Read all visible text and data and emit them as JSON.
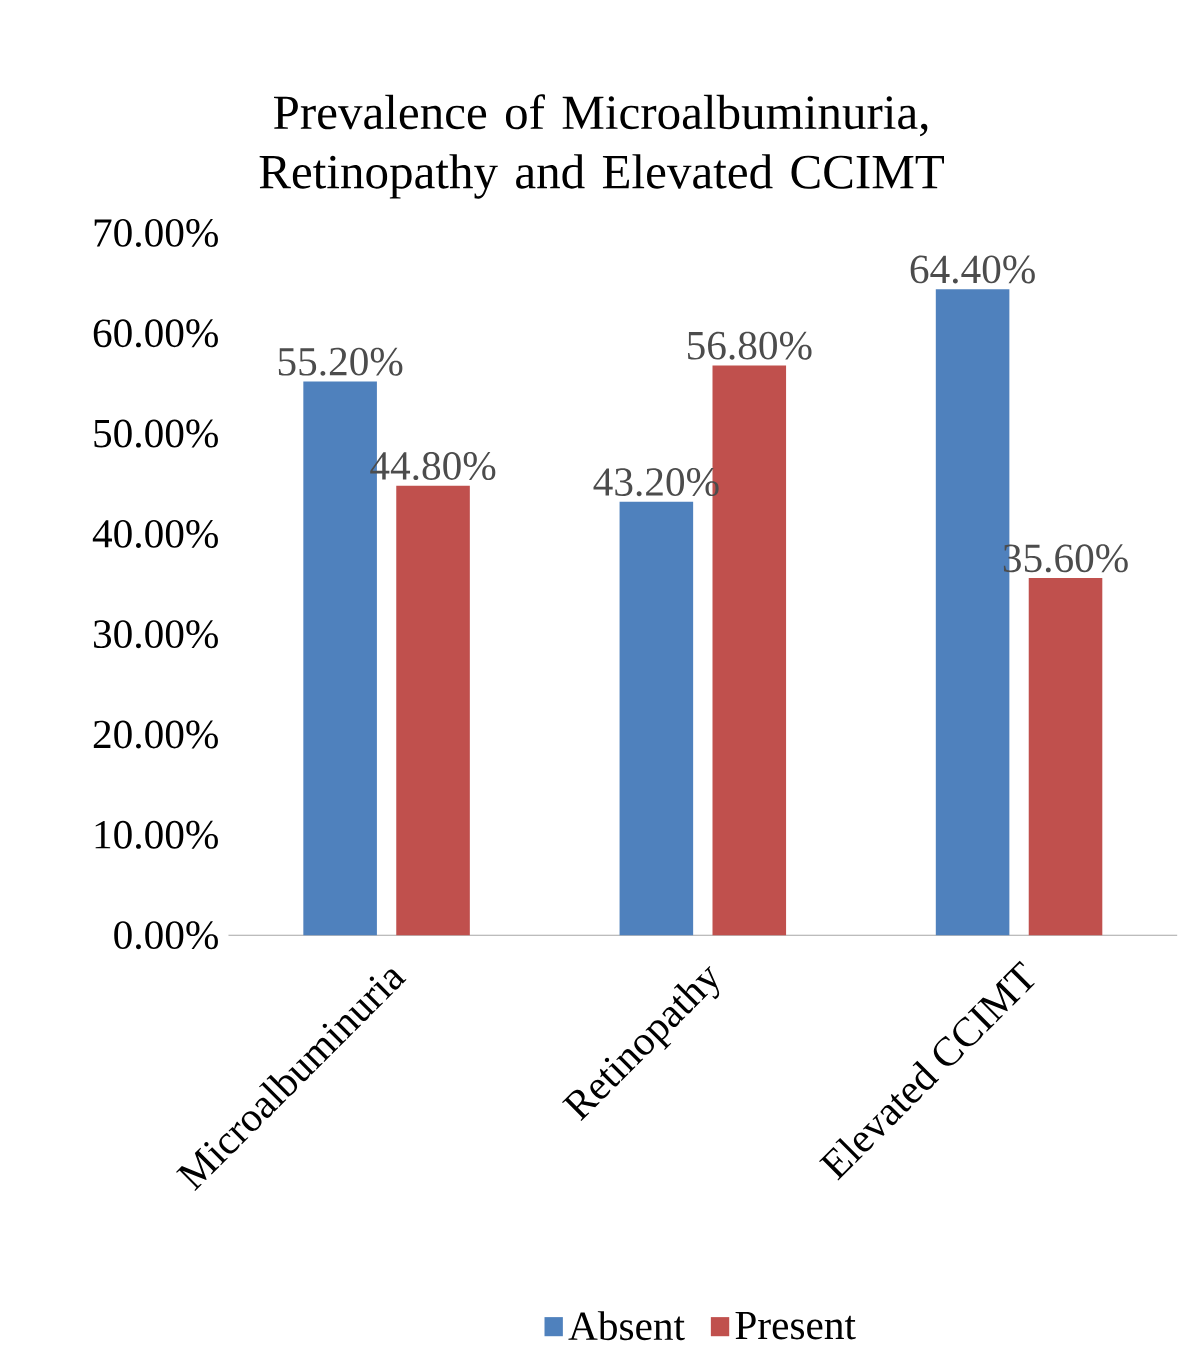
{
  "chart_data": {
    "type": "bar",
    "title": "Prevalence of Microalbuminuria, Retinopathy and Elevated CCIMT",
    "categories": [
      "Microalbuminuria",
      "Retinopathy",
      "Elevated CCIMT"
    ],
    "series": [
      {
        "name": "Absent",
        "color": "#4f81bd",
        "values": [
          55.2,
          43.2,
          64.4
        ],
        "value_labels": [
          "55.20%",
          "43.20%",
          "64.40%"
        ]
      },
      {
        "name": "Present",
        "color": "#c0504d",
        "values": [
          44.8,
          56.8,
          35.6
        ],
        "value_labels": [
          "44.80%",
          "56.80%",
          "35.60%"
        ]
      }
    ],
    "ylim": [
      0,
      70
    ],
    "yticks": [
      {
        "value": 0,
        "label": "0.00%"
      },
      {
        "value": 10,
        "label": "10.00%"
      },
      {
        "value": 20,
        "label": "20.00%"
      },
      {
        "value": 30,
        "label": "30.00%"
      },
      {
        "value": 40,
        "label": "40.00%"
      },
      {
        "value": 50,
        "label": "50.00%"
      },
      {
        "value": 60,
        "label": "60.00%"
      },
      {
        "value": 70,
        "label": "70.00%"
      }
    ],
    "legend": "bottom",
    "grid": false
  }
}
